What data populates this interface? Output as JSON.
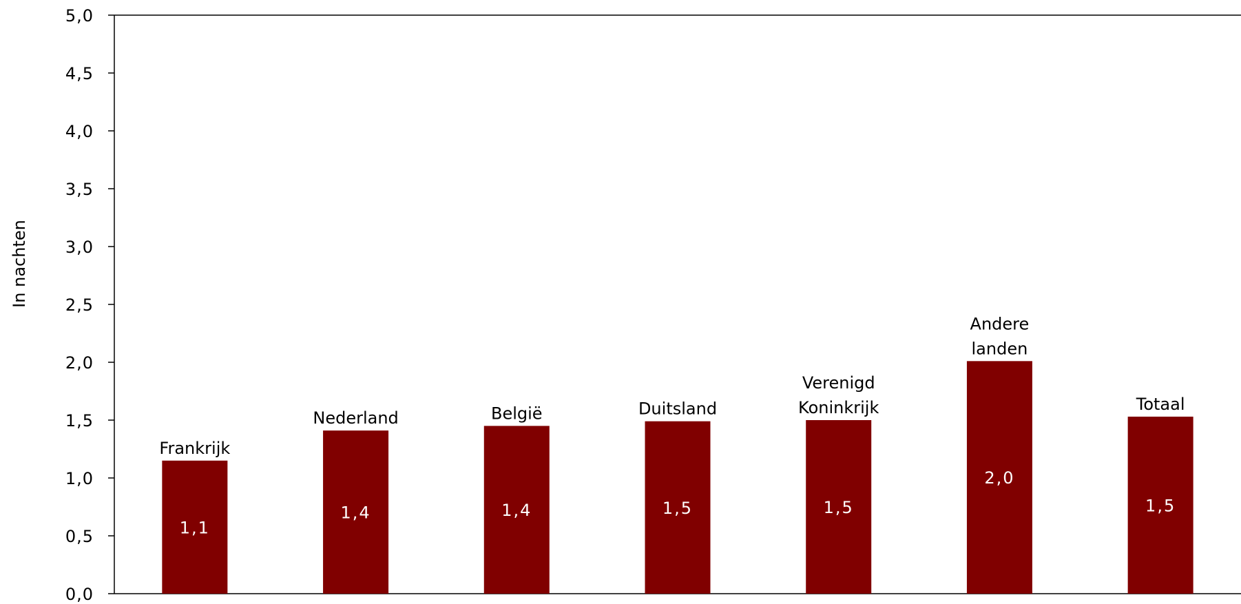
{
  "chart_data": {
    "type": "bar",
    "title": "",
    "xlabel": "",
    "ylabel": "In nachten",
    "ylim": [
      0,
      5
    ],
    "yticks": [
      "0,0",
      "0,5",
      "1,0",
      "1,5",
      "2,0",
      "2,5",
      "3,0",
      "3,5",
      "4,0",
      "4,5",
      "5,0"
    ],
    "categories": [
      [
        "Frankrijk"
      ],
      [
        "Nederland"
      ],
      [
        "België"
      ],
      [
        "Duitsland"
      ],
      [
        "Verenigd",
        "Koninkrijk"
      ],
      [
        "Andere",
        "landen"
      ],
      [
        "Totaal"
      ]
    ],
    "values": [
      1.15,
      1.41,
      1.45,
      1.49,
      1.5,
      2.01,
      1.53
    ],
    "data_labels": [
      "1,1",
      "1,4",
      "1,4",
      "1,5",
      "1,5",
      "2,0",
      "1,5"
    ],
    "bar_color": "#800000",
    "grid": false,
    "legend": "none"
  }
}
